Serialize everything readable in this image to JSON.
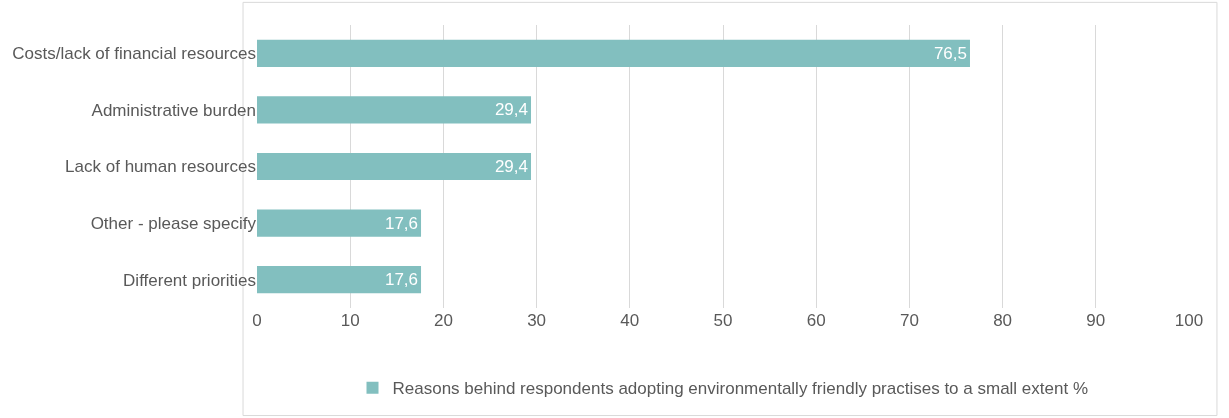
{
  "chart_data": {
    "type": "bar",
    "orientation": "horizontal",
    "categories": [
      "Costs/lack of financial resources",
      "Administrative burden",
      "Lack of human resources",
      "Other - please specify",
      "Different priorities"
    ],
    "series": [
      {
        "name": "Reasons behind respondents adopting environmentally friendly practises to a small extent %",
        "color": "#82bfbf",
        "values": [
          76.5,
          29.4,
          29.4,
          17.6,
          17.6
        ],
        "value_labels": [
          "76,5",
          "29,4",
          "29,4",
          "17,6",
          "17,6"
        ]
      }
    ],
    "xlim": [
      0,
      100
    ],
    "xticks": [
      0,
      10,
      20,
      30,
      40,
      50,
      60,
      70,
      80,
      90,
      100
    ],
    "grid": "x",
    "legend": "bottom"
  }
}
